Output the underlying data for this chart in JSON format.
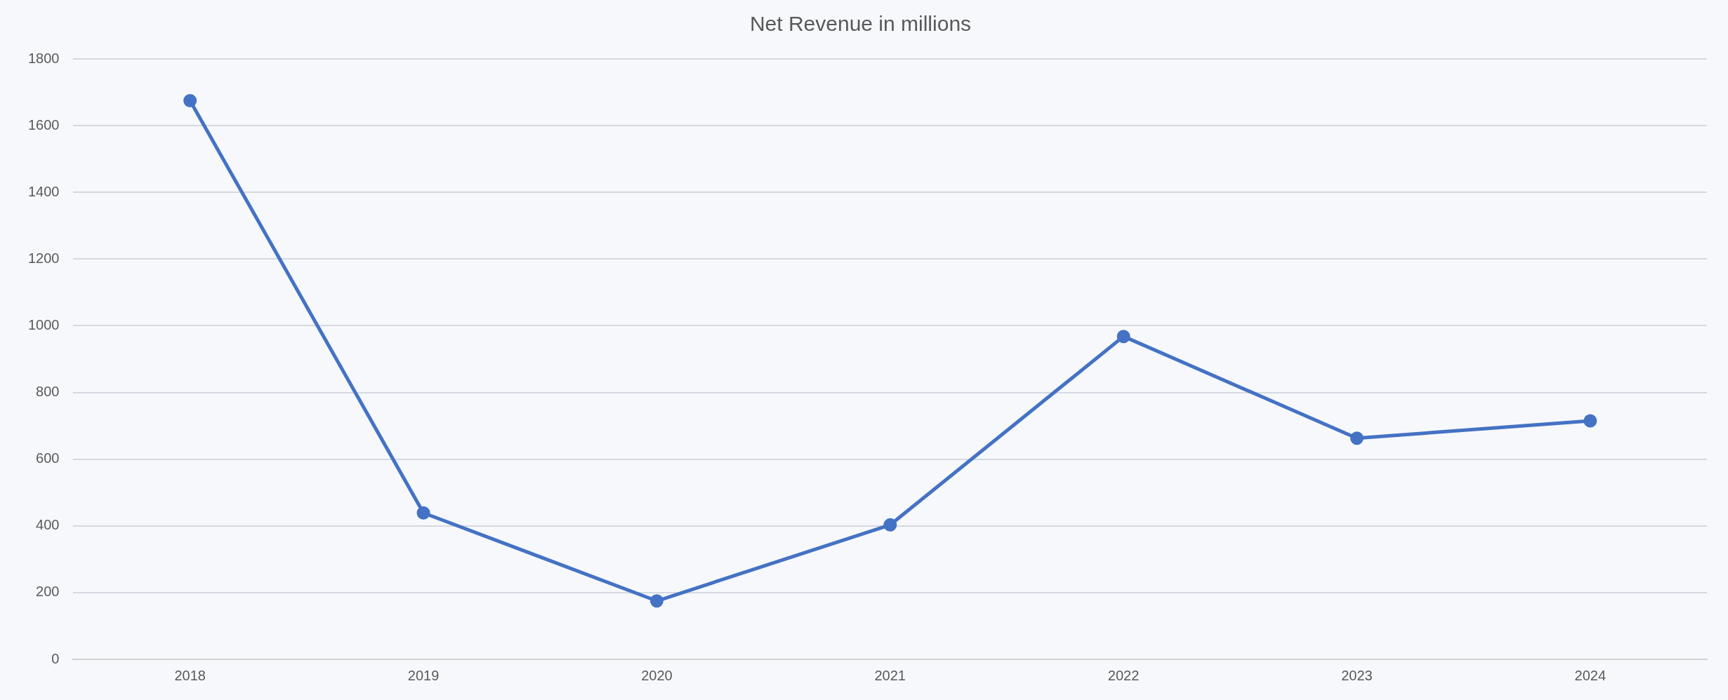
{
  "chart_data": {
    "type": "line",
    "title": "Net Revenue in millions",
    "categories": [
      "2018",
      "2019",
      "2020",
      "2021",
      "2022",
      "2023",
      "2024"
    ],
    "series": [
      {
        "color": "#4472c4",
        "values": [
          1675,
          439,
          175,
          403,
          968,
          663,
          715
        ]
      }
    ],
    "ylim": [
      0,
      1800
    ],
    "yticks": [
      0,
      200,
      400,
      600,
      800,
      1000,
      1200,
      1400,
      1600,
      1800
    ],
    "grid": "y",
    "legend": false,
    "marker": "circle",
    "line_style": "solid"
  }
}
